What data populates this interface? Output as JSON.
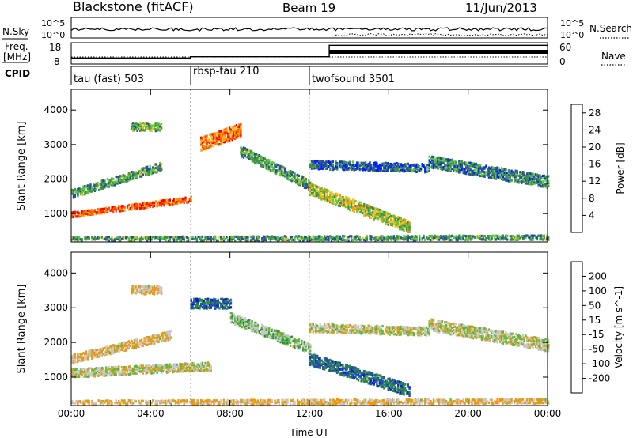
{
  "header": {
    "station": "Blackstone (fitACF)",
    "beam": "Beam 19",
    "date": "11/Jun/2013"
  },
  "noise_panel": {
    "left_label": "N.Sky",
    "right_label": "N.Search",
    "y_ticks_left": [
      "10^5",
      "10^0"
    ],
    "y_ticks_right": [
      "10^5",
      "10^0"
    ]
  },
  "freq_panel": {
    "left_label_line1": "Freq.",
    "left_label_line2": "[MHz]",
    "right_label": "Nave",
    "y_ticks_left": [
      "18",
      "8"
    ],
    "y_ticks_right": [
      "60",
      "0"
    ],
    "freq_steps": [
      {
        "from_hour": 0,
        "to_hour": 6,
        "freq_mhz": 10.0
      },
      {
        "from_hour": 6,
        "to_hour": 13,
        "freq_mhz": 10.8
      },
      {
        "from_hour": 13,
        "to_hour": 24,
        "freq_mhz": 18.3
      }
    ]
  },
  "cpid": {
    "label": "CPID",
    "modes": [
      {
        "start_hour": 0,
        "name": "tau (fast) 503"
      },
      {
        "start_hour": 6,
        "name": "rbsp-tau 210"
      },
      {
        "start_hour": 12,
        "name": "twofsound 3501"
      }
    ]
  },
  "colors": {
    "power_scale": [
      "#0020ff",
      "#2a4f98",
      "#3f8f4f",
      "#5cc83c",
      "#f0c020",
      "#ff9000",
      "#ff5000",
      "#ff0000"
    ],
    "velocity_scale": [
      "#ff0000",
      "#ff5000",
      "#ff9000",
      "#d8a020",
      "#c8c8c8",
      "#5ab83c",
      "#2e8a3c",
      "#2050b0",
      "#1020d0"
    ]
  },
  "chart_data": [
    {
      "type": "heatmap",
      "title": "",
      "xlabel": "",
      "ylabel": "Slant Range [km]",
      "x_ticks": [
        "00:00",
        "04:00",
        "08:00",
        "12:00",
        "16:00",
        "20:00",
        "00:00"
      ],
      "xlim_hours": [
        0,
        24
      ],
      "y_ticks": [
        "1000",
        "2000",
        "3000",
        "4000"
      ],
      "ylim_km": [
        180,
        4600
      ],
      "colorbar": {
        "label": "Power [dB]",
        "ticks": [
          "4",
          "8",
          "12",
          "16",
          "20",
          "24",
          "28"
        ],
        "range": [
          0,
          30
        ]
      },
      "echo_regions": [
        {
          "t": [
            0.0,
            6.0
          ],
          "r0": [
            950,
            1400
          ],
          "width": 160,
          "value": 24
        },
        {
          "t": [
            0.0,
            4.5
          ],
          "r0": [
            1550,
            2350
          ],
          "width": 250,
          "value": 10
        },
        {
          "t": [
            3.0,
            4.5
          ],
          "r0": [
            3500,
            3500
          ],
          "width": 250,
          "value": 12
        },
        {
          "t": [
            6.5,
            8.5
          ],
          "r0": [
            3000,
            3400
          ],
          "width": 400,
          "value": 22
        },
        {
          "t": [
            8.5,
            12.0
          ],
          "r0": [
            2800,
            1800
          ],
          "width": 300,
          "value": 10
        },
        {
          "t": [
            12.0,
            17.0
          ],
          "r0": [
            1700,
            600
          ],
          "width": 350,
          "value": 14
        },
        {
          "t": [
            12.0,
            18.0
          ],
          "r0": [
            2400,
            2300
          ],
          "width": 250,
          "value": 6
        },
        {
          "t": [
            18.0,
            24.0
          ],
          "r0": [
            2500,
            1900
          ],
          "width": 350,
          "value": 8
        },
        {
          "t": [
            0.0,
            24.0
          ],
          "r0": [
            250,
            300
          ],
          "width": 150,
          "value": 10
        }
      ]
    },
    {
      "type": "heatmap",
      "title": "",
      "xlabel": "Time UT",
      "ylabel": "Slant Range [km]",
      "x_ticks": [
        "00:00",
        "04:00",
        "08:00",
        "12:00",
        "16:00",
        "20:00",
        "00:00"
      ],
      "xlim_hours": [
        0,
        24
      ],
      "y_ticks": [
        "1000",
        "2000",
        "3000",
        "4000"
      ],
      "ylim_km": [
        180,
        4600
      ],
      "colorbar": {
        "label": "Velocity [m s^-1]",
        "ticks": [
          "200",
          "100",
          "50",
          "15",
          "-15",
          "-50",
          "-100",
          "-200"
        ],
        "range": [
          -250,
          250
        ]
      },
      "echo_regions": [
        {
          "t": [
            0.0,
            7.0
          ],
          "r0": [
            1100,
            1300
          ],
          "width": 250,
          "value": 0
        },
        {
          "t": [
            0.0,
            5.0
          ],
          "r0": [
            1500,
            2200
          ],
          "width": 250,
          "value": -40
        },
        {
          "t": [
            3.0,
            4.5
          ],
          "r0": [
            3500,
            3500
          ],
          "width": 250,
          "value": -40
        },
        {
          "t": [
            6.0,
            8.0
          ],
          "r0": [
            3100,
            3100
          ],
          "width": 300,
          "value": 150
        },
        {
          "t": [
            8.0,
            12.0
          ],
          "r0": [
            2700,
            1800
          ],
          "width": 300,
          "value": 40
        },
        {
          "t": [
            12.0,
            17.0
          ],
          "r0": [
            1500,
            600
          ],
          "width": 350,
          "value": 150
        },
        {
          "t": [
            12.0,
            18.0
          ],
          "r0": [
            2400,
            2300
          ],
          "width": 250,
          "value": 0
        },
        {
          "t": [
            18.0,
            24.0
          ],
          "r0": [
            2500,
            1900
          ],
          "width": 350,
          "value": 0
        },
        {
          "t": [
            0.0,
            24.0
          ],
          "r0": [
            250,
            300
          ],
          "width": 150,
          "value": -40
        }
      ]
    }
  ]
}
